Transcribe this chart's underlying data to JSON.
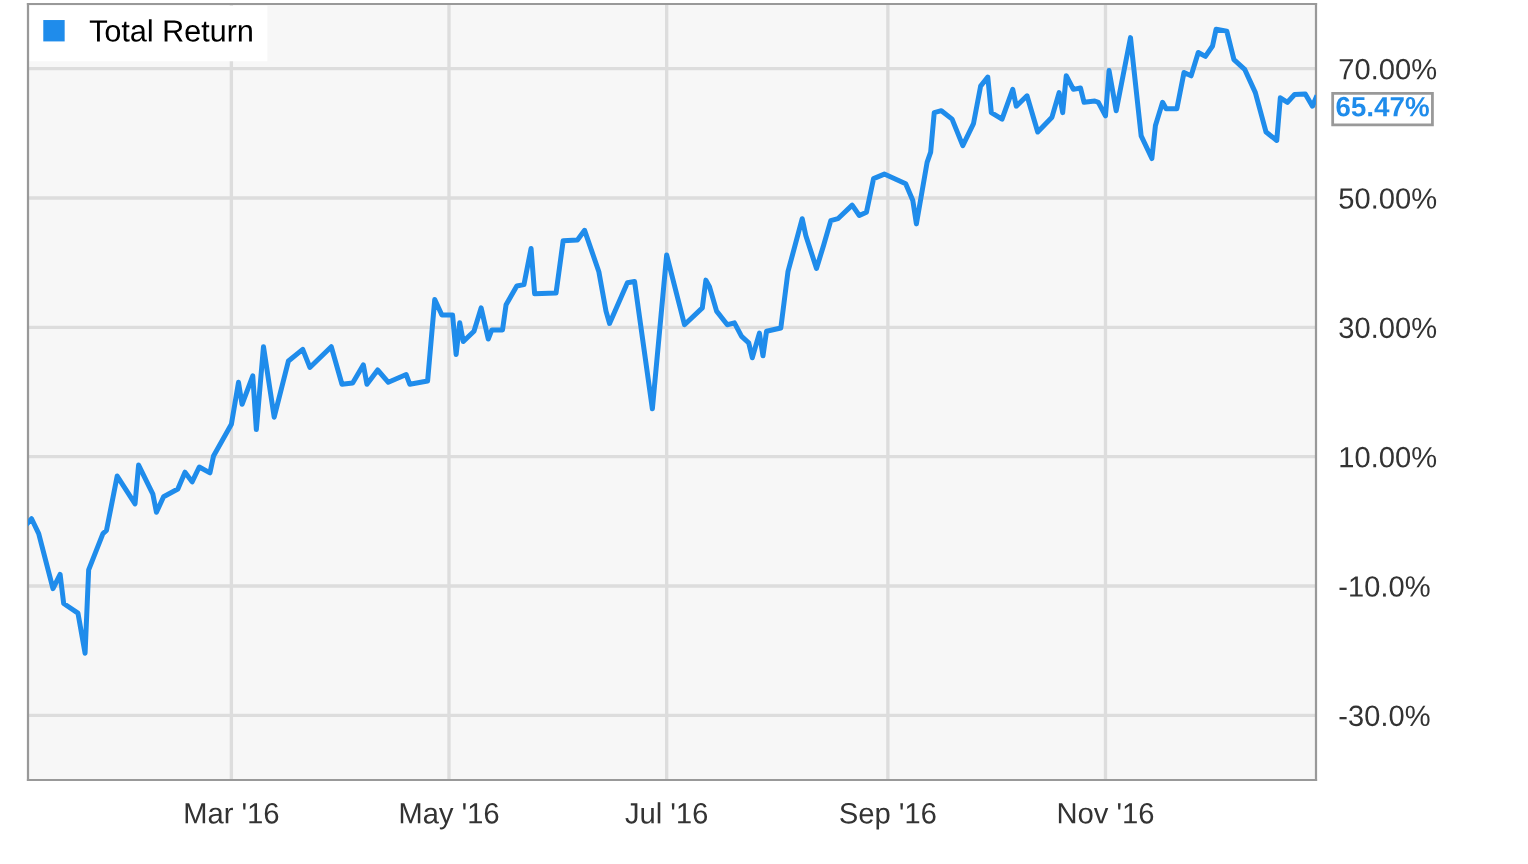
{
  "chart_data": {
    "type": "line",
    "legend": "top left",
    "grid": true,
    "marker": "none",
    "line_style": "solid",
    "xlim": [
      "2016-01-04",
      "2016-12-30"
    ],
    "xticks": [
      {
        "value": "2016-03-01",
        "label": "Mar '16"
      },
      {
        "value": "2016-05-01",
        "label": "May '16"
      },
      {
        "value": "2016-07-01",
        "label": "Jul '16"
      },
      {
        "value": "2016-09-01",
        "label": "Sep '16"
      },
      {
        "value": "2016-11-01",
        "label": "Nov '16"
      }
    ],
    "ylim": [
      -40,
      80
    ],
    "yticks": [
      {
        "value": -30,
        "label": "-30.0%"
      },
      {
        "value": -10,
        "label": "-10.0%"
      },
      {
        "value": 10,
        "label": "10.00%"
      },
      {
        "value": 30,
        "label": "30.00%"
      },
      {
        "value": 50,
        "label": "50.00%"
      },
      {
        "value": 70,
        "label": "70.00%"
      }
    ],
    "annotations": [
      {
        "text": "65.47%",
        "x": "2016-12-30",
        "y": 65.47
      }
    ],
    "x": [
      "2016-01-04",
      "2016-01-05",
      "2016-01-07",
      "2016-01-11",
      "2016-01-13",
      "2016-01-14",
      "2016-01-18",
      "2016-01-20",
      "2016-01-21",
      "2016-01-25",
      "2016-01-26",
      "2016-01-29",
      "2016-02-03",
      "2016-02-04",
      "2016-02-08",
      "2016-02-09",
      "2016-02-11",
      "2016-02-15",
      "2016-02-17",
      "2016-02-19",
      "2016-02-21",
      "2016-02-24",
      "2016-02-25",
      "2016-03-01",
      "2016-03-03",
      "2016-03-04",
      "2016-03-07",
      "2016-03-08",
      "2016-03-10",
      "2016-03-13",
      "2016-03-17",
      "2016-03-21",
      "2016-03-23",
      "2016-03-29",
      "2016-04-01",
      "2016-04-04",
      "2016-04-07",
      "2016-04-08",
      "2016-04-11",
      "2016-04-14",
      "2016-04-19",
      "2016-04-20",
      "2016-04-25",
      "2016-04-27",
      "2016-04-29",
      "2016-05-02",
      "2016-05-03",
      "2016-05-04",
      "2016-05-05",
      "2016-05-08",
      "2016-05-10",
      "2016-05-12",
      "2016-05-13",
      "2016-05-16",
      "2016-05-17",
      "2016-05-20",
      "2016-05-22",
      "2016-05-24",
      "2016-05-25",
      "2016-05-31",
      "2016-06-02",
      "2016-06-06",
      "2016-06-08",
      "2016-06-12",
      "2016-06-14",
      "2016-06-15",
      "2016-06-20",
      "2016-06-22",
      "2016-06-27",
      "2016-07-01",
      "2016-07-06",
      "2016-07-11",
      "2016-07-12",
      "2016-07-13",
      "2016-07-15",
      "2016-07-18",
      "2016-07-20",
      "2016-07-22",
      "2016-07-24",
      "2016-07-25",
      "2016-07-27",
      "2016-07-28",
      "2016-07-29",
      "2016-08-02",
      "2016-08-04",
      "2016-08-08",
      "2016-08-09",
      "2016-08-12",
      "2016-08-14",
      "2016-08-16",
      "2016-08-18",
      "2016-08-22",
      "2016-08-24",
      "2016-08-26",
      "2016-08-28",
      "2016-08-31",
      "2016-09-06",
      "2016-09-08",
      "2016-09-09",
      "2016-09-12",
      "2016-09-13",
      "2016-09-14",
      "2016-09-16",
      "2016-09-19",
      "2016-09-22",
      "2016-09-25",
      "2016-09-27",
      "2016-09-29",
      "2016-09-30",
      "2016-10-03",
      "2016-10-06",
      "2016-10-07",
      "2016-10-10",
      "2016-10-13",
      "2016-10-17",
      "2016-10-19",
      "2016-10-20",
      "2016-10-21",
      "2016-10-23",
      "2016-10-25",
      "2016-10-26",
      "2016-10-29",
      "2016-10-30",
      "2016-11-01",
      "2016-11-02",
      "2016-11-04",
      "2016-11-08",
      "2016-11-11",
      "2016-11-14",
      "2016-11-15",
      "2016-11-17",
      "2016-11-18",
      "2016-11-21",
      "2016-11-23",
      "2016-11-25",
      "2016-11-27",
      "2016-11-29",
      "2016-12-01",
      "2016-12-02",
      "2016-12-05",
      "2016-12-07",
      "2016-12-10",
      "2016-12-13",
      "2016-12-16",
      "2016-12-19",
      "2016-12-20",
      "2016-12-22",
      "2016-12-24",
      "2016-12-27",
      "2016-12-29",
      "2016-12-30"
    ],
    "series": [
      {
        "name": "Total Return",
        "color": "#1f8ceb",
        "values": [
          -0.2,
          0.4,
          -1.9,
          -10.4,
          -8.2,
          -12.7,
          -14.2,
          -20.4,
          -7.5,
          -1.9,
          -1.4,
          7.0,
          2.7,
          8.7,
          4.2,
          1.4,
          3.8,
          5.0,
          7.6,
          6.1,
          8.4,
          7.5,
          10.1,
          15.0,
          21.5,
          18.1,
          22.5,
          14.2,
          27.0,
          16.1,
          24.8,
          26.6,
          23.8,
          27.0,
          21.2,
          21.4,
          24.2,
          21.2,
          23.4,
          21.5,
          22.7,
          21.2,
          21.7,
          34.3,
          31.9,
          31.9,
          25.8,
          30.7,
          27.8,
          29.4,
          33.0,
          28.2,
          29.6,
          29.6,
          33.5,
          36.4,
          36.6,
          42.2,
          35.2,
          35.3,
          43.4,
          43.5,
          45.0,
          38.6,
          32.5,
          30.6,
          36.9,
          37.1,
          17.4,
          41.2,
          30.4,
          33.0,
          37.3,
          36.3,
          32.5,
          30.4,
          30.7,
          28.6,
          27.6,
          25.3,
          29.1,
          25.6,
          29.4,
          29.9,
          38.6,
          46.8,
          44.2,
          39.1,
          42.7,
          46.5,
          46.8,
          48.9,
          47.3,
          47.8,
          53.0,
          53.7,
          52.2,
          49.6,
          46.0,
          55.5,
          57.1,
          63.2,
          63.5,
          62.2,
          58.1,
          61.5,
          67.3,
          68.7,
          63.2,
          62.2,
          66.8,
          64.2,
          65.8,
          60.2,
          62.5,
          66.3,
          63.2,
          68.9,
          66.8,
          67.0,
          64.8,
          65.0,
          64.8,
          62.7,
          69.7,
          63.5,
          74.8,
          59.6,
          56.1,
          61.2,
          64.8,
          63.8,
          63.8,
          69.4,
          68.9,
          72.5,
          71.9,
          73.5,
          76.1,
          75.8,
          71.4,
          69.9,
          66.3,
          60.2,
          58.9,
          65.5,
          64.8,
          66.0,
          66.1,
          64.2,
          65.5
        ]
      }
    ]
  }
}
